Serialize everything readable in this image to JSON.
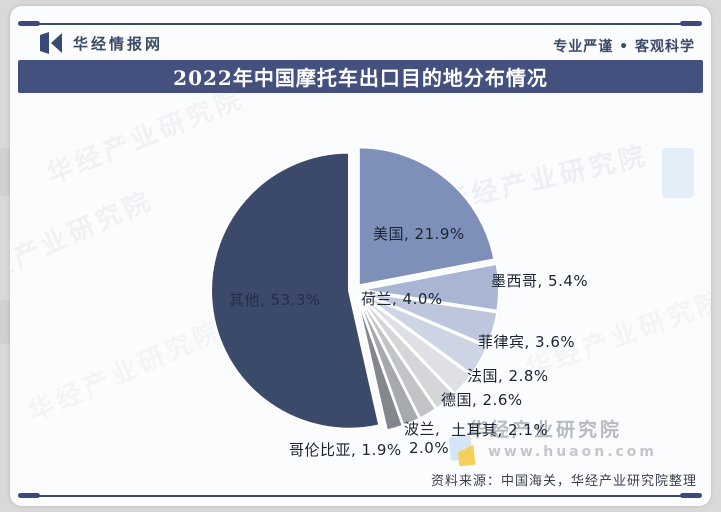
{
  "header": {
    "brand": "华经情报网",
    "slogan": "专业严谨 • 客观科学"
  },
  "title": "2022年中国摩托车出口目的地分布情况",
  "chart_data": {
    "type": "pie",
    "title": "2022年中国摩托车出口目的地分布情况",
    "unit": "%",
    "direction": "clockwise",
    "start_angle_deg": 0,
    "categories": [
      "美国",
      "墨西哥",
      "荷兰",
      "菲律宾",
      "法国",
      "德国",
      "土耳其",
      "波兰",
      "哥伦比亚",
      "其他"
    ],
    "values": [
      21.9,
      5.4,
      4.0,
      3.6,
      2.8,
      2.6,
      2.1,
      2.0,
      1.9,
      53.3
    ],
    "colors": [
      "#7E90B9",
      "#A9B6D3",
      "#BDC6DD",
      "#CDD4E4",
      "#DEE0E5",
      "#D4D6DA",
      "#C2C4C8",
      "#A6A9AE",
      "#84878D",
      "#3B4A6B"
    ],
    "display_labels": {
      "us": "美国, 21.9%",
      "mexico": "墨西哥, 5.4%",
      "netherlands": "荷兰, 4.0%",
      "philippines": "菲律宾, 3.6%",
      "france": "法国, 2.8%",
      "germany": "德国, 2.6%",
      "poland_name": "波兰,",
      "turkey": "土耳其, 2.1%",
      "colombia": "哥伦比亚, 1.9%",
      "poland_value": "2.0%",
      "other": "其他, 53.3%"
    }
  },
  "watermark": {
    "text": "华经产业研究院",
    "url": "www.huaon.com"
  },
  "source": "资料来源：中国海关，华经产业研究院整理",
  "theme": {
    "accent_navy": "#44517e",
    "rule_navy": "#3a4a76",
    "card_bg": "#fbfcfd",
    "page_bg": "#d9d9d9"
  }
}
